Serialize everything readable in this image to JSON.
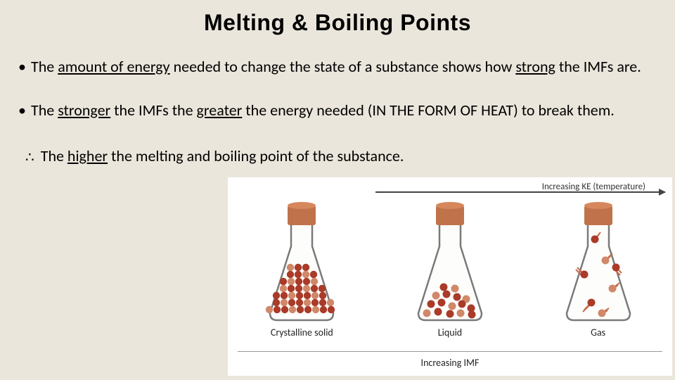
{
  "title": "Melting & Boiling Points",
  "bullets": {
    "b1": {
      "pre": "The ",
      "u1": "amount of energy",
      "mid": " needed to change the state of a substance shows how ",
      "u2": "strong",
      "post": " the IMFs are."
    },
    "b2": {
      "pre": "The ",
      "u1": "stronger",
      "mid1": " the IMFs the ",
      "u2": "greater",
      "mid2": " the energy needed (IN THE FORM OF HEAT) to break them."
    },
    "b3": {
      "pre": "The ",
      "u1": "higher",
      "post": " the melting and boiling point of the substance."
    }
  },
  "diagram": {
    "ke_label": "Increasing KE (temperature)",
    "imf_label": "Increasing IMF",
    "flask_labels": [
      "Crystalline solid",
      "Liquid",
      "Gas"
    ],
    "colors": {
      "cork": "#c0734a",
      "cork_top": "#d6885c",
      "flask_stroke": "#7a7a7a",
      "flask_fill": "#fdfdfb",
      "particle_dark": "#a93b28",
      "particle_light": "#d08868",
      "motion_line": "#c76b4a"
    }
  },
  "style": {
    "background": "#ebe6dc",
    "title_fontsize": 32,
    "body_fontsize": 22
  }
}
